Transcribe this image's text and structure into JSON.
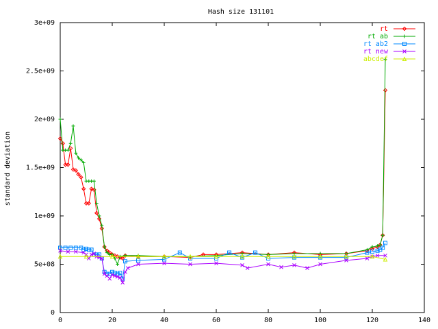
{
  "chart_data": {
    "type": "line",
    "title": "Hash size 131101",
    "xlabel": "",
    "ylabel": "standard deviation",
    "xlim": [
      0,
      140
    ],
    "ylim": [
      0,
      3000000000
    ],
    "xticks": [
      0,
      20,
      40,
      60,
      80,
      100,
      120,
      140
    ],
    "xtick_labels": [
      "0",
      "20",
      "40",
      "60",
      "80",
      "100",
      "120",
      "140"
    ],
    "yticks": [
      0,
      500000000,
      1000000000,
      1500000000,
      2000000000,
      2500000000,
      3000000000
    ],
    "ytick_labels": [
      "0",
      "5e+08",
      "1e+09",
      "1.5e+09",
      "2e+09",
      "2.5e+09",
      "3e+09"
    ],
    "grid": false,
    "legend_position": "top-right",
    "series": [
      {
        "name": "rt",
        "color": "#ff0000",
        "marker": "diamond",
        "points": [
          [
            0,
            1800000000
          ],
          [
            1,
            1750000000
          ],
          [
            2,
            1530000000
          ],
          [
            3,
            1530000000
          ],
          [
            4,
            1700000000
          ],
          [
            5,
            1480000000
          ],
          [
            6,
            1470000000
          ],
          [
            7,
            1430000000
          ],
          [
            8,
            1400000000
          ],
          [
            9,
            1280000000
          ],
          [
            10,
            1130000000
          ],
          [
            11,
            1130000000
          ],
          [
            12,
            1280000000
          ],
          [
            13,
            1270000000
          ],
          [
            14,
            1030000000
          ],
          [
            15,
            970000000
          ],
          [
            16,
            870000000
          ],
          [
            17,
            680000000
          ],
          [
            18,
            640000000
          ],
          [
            19,
            620000000
          ],
          [
            20,
            600000000
          ],
          [
            21,
            590000000
          ],
          [
            22,
            580000000
          ],
          [
            23,
            570000000
          ],
          [
            24,
            560000000
          ],
          [
            25,
            590000000
          ],
          [
            30,
            580000000
          ],
          [
            40,
            580000000
          ],
          [
            50,
            570000000
          ],
          [
            55,
            600000000
          ],
          [
            60,
            600000000
          ],
          [
            70,
            620000000
          ],
          [
            80,
            600000000
          ],
          [
            90,
            620000000
          ],
          [
            100,
            600000000
          ],
          [
            110,
            610000000
          ],
          [
            118,
            640000000
          ],
          [
            120,
            660000000
          ],
          [
            122,
            680000000
          ],
          [
            123,
            700000000
          ],
          [
            124,
            800000000
          ],
          [
            125,
            2300000000
          ]
        ]
      },
      {
        "name": "rt ab",
        "color": "#00aa00",
        "marker": "plus",
        "points": [
          [
            0,
            2000000000
          ],
          [
            1,
            1680000000
          ],
          [
            2,
            1680000000
          ],
          [
            3,
            1680000000
          ],
          [
            4,
            1750000000
          ],
          [
            5,
            1930000000
          ],
          [
            6,
            1650000000
          ],
          [
            7,
            1600000000
          ],
          [
            8,
            1580000000
          ],
          [
            9,
            1550000000
          ],
          [
            10,
            1360000000
          ],
          [
            11,
            1360000000
          ],
          [
            12,
            1360000000
          ],
          [
            13,
            1360000000
          ],
          [
            14,
            1130000000
          ],
          [
            15,
            1000000000
          ],
          [
            16,
            900000000
          ],
          [
            17,
            680000000
          ],
          [
            18,
            620000000
          ],
          [
            19,
            600000000
          ],
          [
            20,
            600000000
          ],
          [
            21,
            560000000
          ],
          [
            22,
            500000000
          ],
          [
            23,
            580000000
          ],
          [
            25,
            590000000
          ],
          [
            30,
            590000000
          ],
          [
            40,
            580000000
          ],
          [
            50,
            580000000
          ],
          [
            60,
            590000000
          ],
          [
            70,
            610000000
          ],
          [
            80,
            600000000
          ],
          [
            90,
            610000000
          ],
          [
            100,
            610000000
          ],
          [
            110,
            610000000
          ],
          [
            118,
            650000000
          ],
          [
            120,
            680000000
          ],
          [
            122,
            690000000
          ],
          [
            123,
            700000000
          ],
          [
            124,
            800000000
          ],
          [
            125,
            2620000000
          ]
        ]
      },
      {
        "name": "rt ab2",
        "color": "#0088ff",
        "marker": "square",
        "points": [
          [
            0,
            670000000
          ],
          [
            2,
            670000000
          ],
          [
            4,
            670000000
          ],
          [
            6,
            670000000
          ],
          [
            8,
            670000000
          ],
          [
            9,
            650000000
          ],
          [
            10,
            660000000
          ],
          [
            11,
            650000000
          ],
          [
            12,
            650000000
          ],
          [
            13,
            600000000
          ],
          [
            14,
            600000000
          ],
          [
            15,
            600000000
          ],
          [
            16,
            560000000
          ],
          [
            17,
            420000000
          ],
          [
            18,
            400000000
          ],
          [
            19,
            400000000
          ],
          [
            20,
            420000000
          ],
          [
            21,
            410000000
          ],
          [
            22,
            400000000
          ],
          [
            23,
            410000000
          ],
          [
            24,
            350000000
          ],
          [
            25,
            530000000
          ],
          [
            30,
            540000000
          ],
          [
            40,
            550000000
          ],
          [
            46,
            620000000
          ],
          [
            50,
            560000000
          ],
          [
            60,
            560000000
          ],
          [
            65,
            620000000
          ],
          [
            70,
            570000000
          ],
          [
            75,
            620000000
          ],
          [
            80,
            560000000
          ],
          [
            90,
            570000000
          ],
          [
            100,
            570000000
          ],
          [
            110,
            570000000
          ],
          [
            118,
            620000000
          ],
          [
            120,
            630000000
          ],
          [
            122,
            640000000
          ],
          [
            123,
            650000000
          ],
          [
            124,
            670000000
          ],
          [
            125,
            720000000
          ]
        ]
      },
      {
        "name": "rt new",
        "color": "#aa00ff",
        "marker": "x",
        "points": [
          [
            0,
            640000000
          ],
          [
            3,
            630000000
          ],
          [
            6,
            630000000
          ],
          [
            9,
            620000000
          ],
          [
            10,
            600000000
          ],
          [
            11,
            560000000
          ],
          [
            12,
            600000000
          ],
          [
            13,
            610000000
          ],
          [
            14,
            580000000
          ],
          [
            15,
            570000000
          ],
          [
            16,
            560000000
          ],
          [
            17,
            400000000
          ],
          [
            18,
            380000000
          ],
          [
            19,
            350000000
          ],
          [
            20,
            390000000
          ],
          [
            21,
            380000000
          ],
          [
            22,
            370000000
          ],
          [
            23,
            360000000
          ],
          [
            24,
            310000000
          ],
          [
            25,
            420000000
          ],
          [
            26,
            460000000
          ],
          [
            30,
            500000000
          ],
          [
            40,
            510000000
          ],
          [
            50,
            500000000
          ],
          [
            60,
            510000000
          ],
          [
            70,
            490000000
          ],
          [
            72,
            460000000
          ],
          [
            80,
            500000000
          ],
          [
            85,
            470000000
          ],
          [
            90,
            490000000
          ],
          [
            95,
            460000000
          ],
          [
            100,
            500000000
          ],
          [
            110,
            540000000
          ],
          [
            118,
            560000000
          ],
          [
            120,
            580000000
          ],
          [
            122,
            590000000
          ],
          [
            125,
            590000000
          ]
        ]
      },
      {
        "name": "abcdef",
        "color": "#ccee00",
        "marker": "triangle",
        "points": [
          [
            0,
            580000000
          ],
          [
            10,
            580000000
          ],
          [
            20,
            580000000
          ],
          [
            30,
            580000000
          ],
          [
            40,
            580000000
          ],
          [
            50,
            580000000
          ],
          [
            60,
            580000000
          ],
          [
            70,
            580000000
          ],
          [
            80,
            580000000
          ],
          [
            90,
            580000000
          ],
          [
            100,
            580000000
          ],
          [
            110,
            580000000
          ],
          [
            120,
            580000000
          ],
          [
            125,
            550000000
          ]
        ]
      }
    ]
  }
}
